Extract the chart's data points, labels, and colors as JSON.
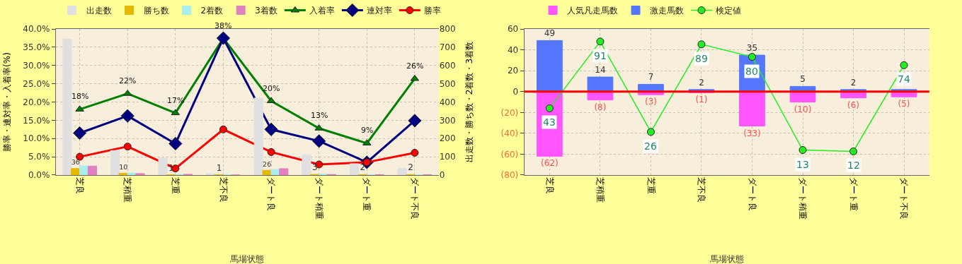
{
  "chart_data": [
    {
      "type": "bar",
      "categories": [
        "芝良",
        "芝稍重",
        "芝重",
        "芝不良",
        "ダート良",
        "ダート稍重",
        "ダート重",
        "ダート不良"
      ],
      "xlabel": "馬場状態",
      "ylabel": "勝率・連対率・入着率(%)",
      "y2label": "出走数・勝ち数・2着数・3着数",
      "ylim": [
        0,
        40
      ],
      "yticks": [
        {
          "value": 0,
          "label": "0.0%"
        },
        {
          "value": 5,
          "label": "5.0%"
        },
        {
          "value": 10,
          "label": "10.0%"
        },
        {
          "value": 15,
          "label": "15.0%"
        },
        {
          "value": 20,
          "label": "20.0%"
        },
        {
          "value": 25,
          "label": "25.0%"
        },
        {
          "value": 30,
          "label": "30.0%"
        },
        {
          "value": 35,
          "label": "35.0%"
        },
        {
          "value": 40,
          "label": "40.0%"
        }
      ],
      "y2lim": [
        0,
        800
      ],
      "y2ticks": [
        0,
        100,
        200,
        300,
        400,
        500,
        600,
        700,
        800
      ],
      "grid": true,
      "legend": "top",
      "series": [
        {
          "name": "出走数",
          "axis": "y2",
          "color": "#e0e0e0",
          "values": [
            744,
            134,
            94,
            8,
            422,
            111,
            62,
            36
          ]
        },
        {
          "name": "勝ち数",
          "axis": "y2",
          "color": "#e6b800",
          "values": [
            36,
            10,
            1,
            1,
            26,
            3,
            2,
            2
          ],
          "value_labels": [
            "36",
            "10",
            "1",
            "1",
            "26",
            "3",
            "2",
            "2"
          ]
        },
        {
          "name": "2着数",
          "axis": "y2",
          "color": "#aaeeee",
          "values": [
            50,
            11,
            3,
            2,
            30,
            5,
            0,
            0
          ]
        },
        {
          "name": "3着数",
          "axis": "y2",
          "color": "#e080c0",
          "values": [
            49,
            8,
            4,
            0,
            35,
            3,
            2,
            2
          ]
        },
        {
          "name": "入着率",
          "type": "line",
          "marker": "triangle",
          "color": "#008000",
          "values": [
            18.0,
            22.3,
            17.0,
            37.5,
            20.3,
            12.8,
            8.7,
            26.4
          ],
          "value_labels": [
            "18%",
            "22%",
            "17%",
            "38%",
            "20%",
            "13%",
            "9%",
            "26%"
          ]
        },
        {
          "name": "連対率",
          "type": "line",
          "marker": "diamond",
          "color": "#000080",
          "values": [
            11.5,
            16.2,
            8.6,
            37.5,
            12.5,
            9.3,
            3.5,
            14.9
          ]
        },
        {
          "name": "勝率",
          "type": "line",
          "marker": "circle",
          "color": "#ff0000",
          "values": [
            5.0,
            7.8,
            1.8,
            12.5,
            6.3,
            2.9,
            3.5,
            6.1
          ]
        }
      ]
    },
    {
      "type": "bar",
      "stacked": true,
      "categories": [
        "芝良",
        "芝稍重",
        "芝重",
        "芝不良",
        "ダート良",
        "ダート稍重",
        "ダート重",
        "ダート不良"
      ],
      "xlabel": "馬場状態",
      "ylim": [
        -80,
        60
      ],
      "yticks": [
        {
          "value": -80,
          "label": "(80)"
        },
        {
          "value": -60,
          "label": "(60)"
        },
        {
          "value": -40,
          "label": "(40)"
        },
        {
          "value": -20,
          "label": "(20)"
        },
        0,
        20,
        40,
        60
      ],
      "y2lim": [
        -5,
        100
      ],
      "tick_labels": "xy",
      "grid": true,
      "legend": "top",
      "ref_lines": [
        {
          "axis": "y",
          "value": 0,
          "color": "#ff0000"
        }
      ],
      "series": [
        {
          "name": "人気凡走馬数",
          "color": "#ff55ff",
          "values": [
            -62,
            -8,
            -3,
            -1,
            -33,
            -10,
            -6,
            -5
          ],
          "value_labels": [
            "(62)",
            "(8)",
            "(3)",
            "(1)",
            "(33)",
            "(10)",
            "(6)",
            "(5)"
          ]
        },
        {
          "name": "激走馬数",
          "color": "#5577ff",
          "values": [
            49,
            14,
            7,
            2,
            35,
            5,
            2,
            2
          ],
          "value_labels": [
            "49",
            "14",
            "7",
            "2",
            "35",
            "5",
            "2",
            null
          ]
        },
        {
          "name": "検定値",
          "type": "line",
          "axis": "y2",
          "marker": "circle",
          "color": "#22ee22",
          "values": [
            43,
            91,
            26,
            89,
            80,
            13,
            12,
            74
          ],
          "value_labels": [
            "43",
            "91",
            "26",
            "89",
            "80",
            "13",
            "12",
            "74"
          ]
        }
      ]
    }
  ]
}
